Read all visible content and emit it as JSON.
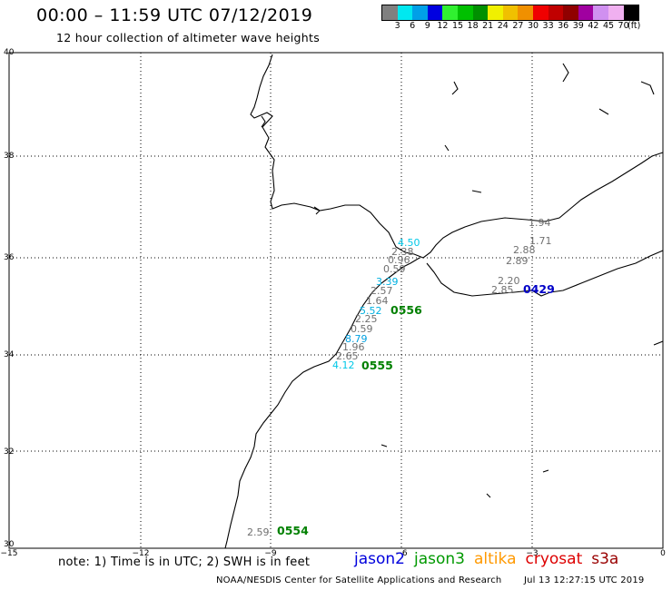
{
  "header": {
    "title": "00:00 – 11:59 UTC 07/12/2019",
    "subtitle": "12 hour collection of altimeter wave heights"
  },
  "color_scale": {
    "colors": [
      "#808080",
      "#00e8f0",
      "#00a0e8",
      "#0000e0",
      "#30f030",
      "#00c000",
      "#009000",
      "#f0f000",
      "#f0c000",
      "#f09000",
      "#f00000",
      "#c00000",
      "#900000",
      "#a000a0",
      "#d090f0",
      "#f0b0f0",
      "#000000"
    ],
    "labels": [
      "3",
      "6",
      "9",
      "12",
      "15",
      "18",
      "21",
      "24",
      "27",
      "30",
      "33",
      "36",
      "39",
      "42",
      "45",
      "70"
    ],
    "unit": "(ft)"
  },
  "axes": {
    "lat_labels": [
      "40",
      "38",
      "36",
      "34",
      "32",
      "30"
    ],
    "lon_labels": [
      "−15",
      "−12",
      "−9",
      "−6",
      "−3",
      "0"
    ]
  },
  "observations": [
    {
      "value": "4.50",
      "color": "#00c8e8"
    },
    {
      "value": "2.38",
      "color": "#707070"
    },
    {
      "value": "0.96",
      "color": "#707070"
    },
    {
      "value": "0.59",
      "color": "#707070"
    },
    {
      "value": "3.39",
      "color": "#00b0e0"
    },
    {
      "value": "2.57",
      "color": "#707070"
    },
    {
      "value": "1.64",
      "color": "#707070"
    },
    {
      "value": "5.52",
      "color": "#00b0e0"
    },
    {
      "value": "2.25",
      "color": "#707070"
    },
    {
      "value": "0.59",
      "color": "#707070"
    },
    {
      "value": "8.79",
      "color": "#00a0e0"
    },
    {
      "value": "1.96",
      "color": "#707070"
    },
    {
      "value": "2.65",
      "color": "#707070"
    },
    {
      "value": "4.12",
      "color": "#00c8e8"
    },
    {
      "value": "1.94",
      "color": "#707070"
    },
    {
      "value": "1.71",
      "color": "#707070"
    },
    {
      "value": "2.88",
      "color": "#707070"
    },
    {
      "value": "2.89",
      "color": "#707070"
    },
    {
      "value": "2.20",
      "color": "#707070"
    },
    {
      "value": "2.85",
      "color": "#707070"
    },
    {
      "value": "2.59",
      "color": "#707070"
    }
  ],
  "pass_labels": [
    {
      "label": "0556",
      "color": "#008000"
    },
    {
      "label": "0555",
      "color": "#008000"
    },
    {
      "label": "0429",
      "color": "#0000c8"
    },
    {
      "label": "0554",
      "color": "#008000"
    }
  ],
  "footer": {
    "note": "note: 1) Time is in UTC; 2) SWH is in feet",
    "satellites": [
      {
        "name": "jason2",
        "color": "#0000dd"
      },
      {
        "name": "jason3",
        "color": "#009900"
      },
      {
        "name": "altika",
        "color": "#ff9900"
      },
      {
        "name": "cryosat",
        "color": "#dd0000"
      },
      {
        "name": "s3a",
        "color": "#990000"
      }
    ],
    "credit": "NOAA/NESDIS Center for Satellite Applications and Research",
    "timestamp": "Jul 13 12:27:15 UTC 2019"
  }
}
